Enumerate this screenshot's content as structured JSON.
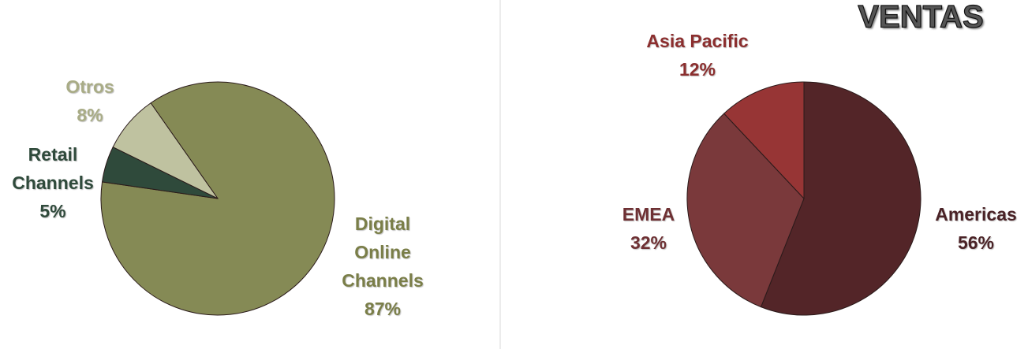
{
  "chart_data": [
    {
      "type": "pie",
      "categories": [
        "Digital Online Channels",
        "Retail Channels",
        "Otros"
      ],
      "values": [
        87,
        5,
        8
      ],
      "value_labels": [
        "87%",
        "5%",
        "8%"
      ],
      "colors": [
        "#858a55",
        "#2f4a3b",
        "#bfc2a0"
      ]
    },
    {
      "type": "pie",
      "title": "VENTAS",
      "categories": [
        "Americas",
        "EMEA",
        "Asia Pacific"
      ],
      "values": [
        56,
        32,
        12
      ],
      "value_labels": [
        "56%",
        "32%",
        "12%"
      ],
      "colors": [
        "#532528",
        "#7a393b",
        "#973535"
      ]
    }
  ]
}
